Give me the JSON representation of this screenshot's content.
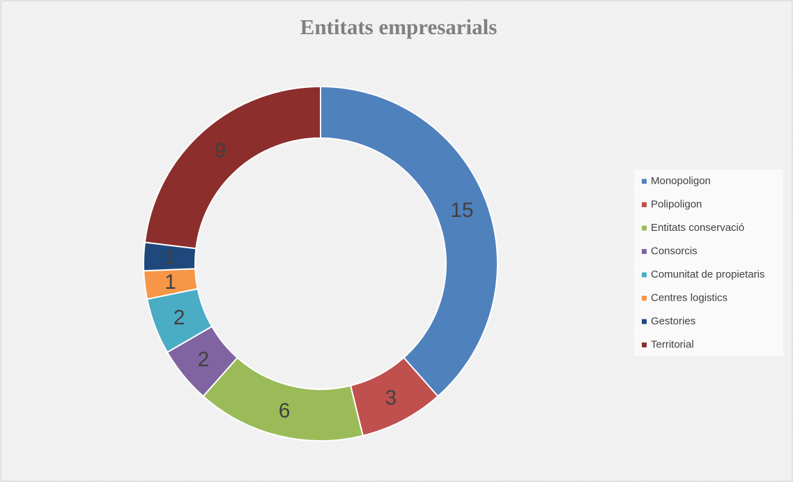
{
  "chart_data": {
    "type": "donut",
    "title": "Entitats empresarials",
    "categories": [
      "Monopoligon",
      "Polipoligon",
      "Entitats conservació",
      "Consorcis",
      "Comunitat de propietaris",
      "Centres logistics",
      "Gestories",
      "Territorial"
    ],
    "values": [
      15,
      3,
      6,
      2,
      2,
      1,
      1,
      9
    ],
    "colors": [
      "#4f81bd",
      "#c0504d",
      "#9bbb59",
      "#8064a2",
      "#4bacc6",
      "#f79646",
      "#1f497d",
      "#8b2e2c"
    ],
    "legend": "right"
  }
}
